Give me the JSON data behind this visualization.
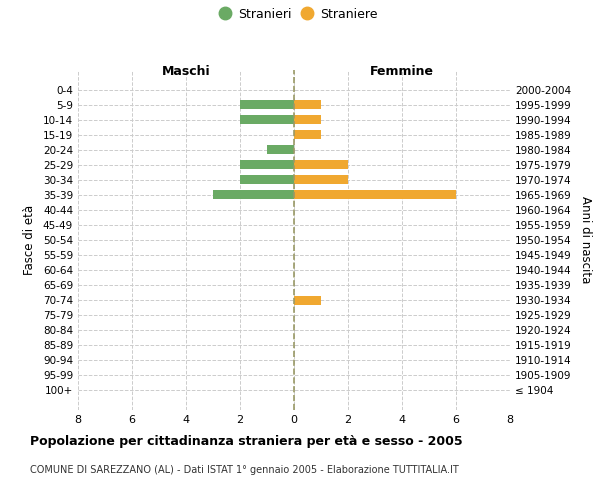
{
  "age_groups": [
    "100+",
    "95-99",
    "90-94",
    "85-89",
    "80-84",
    "75-79",
    "70-74",
    "65-69",
    "60-64",
    "55-59",
    "50-54",
    "45-49",
    "40-44",
    "35-39",
    "30-34",
    "25-29",
    "20-24",
    "15-19",
    "10-14",
    "5-9",
    "0-4"
  ],
  "birth_years": [
    "≤ 1904",
    "1905-1909",
    "1910-1914",
    "1915-1919",
    "1920-1924",
    "1925-1929",
    "1930-1934",
    "1935-1939",
    "1940-1944",
    "1945-1949",
    "1950-1954",
    "1955-1959",
    "1960-1964",
    "1965-1969",
    "1970-1974",
    "1975-1979",
    "1980-1984",
    "1985-1989",
    "1990-1994",
    "1995-1999",
    "2000-2004"
  ],
  "males": [
    0,
    0,
    0,
    0,
    0,
    0,
    0,
    0,
    0,
    0,
    0,
    0,
    0,
    3,
    2,
    2,
    1,
    0,
    2,
    2,
    0
  ],
  "females": [
    0,
    0,
    0,
    0,
    0,
    0,
    1,
    0,
    0,
    0,
    0,
    0,
    0,
    6,
    2,
    2,
    0,
    1,
    1,
    1,
    0
  ],
  "male_color": "#6aaa64",
  "female_color": "#f0a830",
  "title": "Popolazione per cittadinanza straniera per età e sesso - 2005",
  "subtitle": "COMUNE DI SAREZZANO (AL) - Dati ISTAT 1° gennaio 2005 - Elaborazione TUTTITALIA.IT",
  "xlabel_left": "Maschi",
  "xlabel_right": "Femmine",
  "ylabel_left": "Fasce di età",
  "ylabel_right": "Anni di nascita",
  "legend_male": "Stranieri",
  "legend_female": "Straniere",
  "xlim": 8,
  "bg_color": "#ffffff",
  "grid_color": "#cccccc",
  "center_line_color": "#999966"
}
